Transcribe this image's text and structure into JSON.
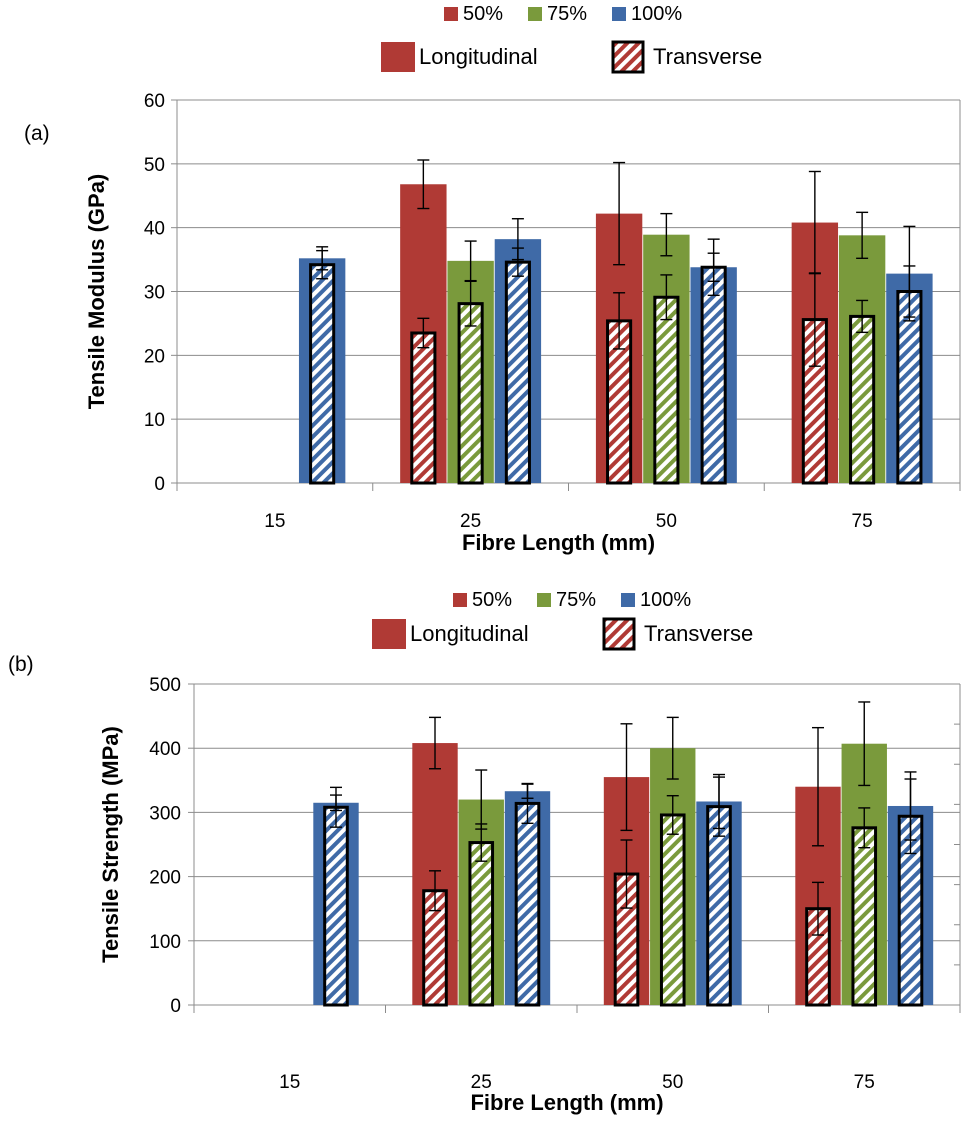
{
  "chart_data": [
    {
      "panel_label": "(a)",
      "type": "bar",
      "xlabel": "Fibre Length (mm)",
      "ylabel": "Tensile Modulus (GPa)",
      "ylim": [
        0,
        60
      ],
      "yticks": [
        0,
        10,
        20,
        30,
        40,
        50,
        60
      ],
      "grid": true,
      "legend": {
        "placement": "top-center",
        "fibre_content": [
          "50%",
          "75%",
          "100%"
        ],
        "directions": [
          "Longitudinal",
          "Transverse"
        ]
      },
      "categories": [
        "15",
        "25",
        "50",
        "75"
      ],
      "series": [
        {
          "name": "50%",
          "direction": "Longitudinal",
          "color": "#B03A35",
          "values": [
            null,
            46.8,
            42.2,
            40.8
          ],
          "error": [
            null,
            3.8,
            8.0,
            8.0
          ]
        },
        {
          "name": "75%",
          "direction": "Longitudinal",
          "color": "#7A9A3C",
          "values": [
            null,
            34.8,
            38.9,
            38.8
          ],
          "error": [
            null,
            3.1,
            3.3,
            3.6
          ]
        },
        {
          "name": "100%",
          "direction": "Longitudinal",
          "color": "#3F6AA7",
          "values": [
            35.2,
            38.2,
            33.8,
            32.8
          ],
          "error": [
            1.8,
            3.2,
            4.4,
            7.4
          ]
        },
        {
          "name": "50%",
          "direction": "Transverse",
          "color": "#B03A35",
          "values": [
            null,
            23.5,
            25.4,
            25.6
          ],
          "error": [
            null,
            2.3,
            4.4,
            7.3
          ]
        },
        {
          "name": "75%",
          "direction": "Transverse",
          "color": "#7A9A3C",
          "values": [
            null,
            28.1,
            29.1,
            26.1
          ],
          "error": [
            null,
            3.5,
            3.5,
            2.5
          ]
        },
        {
          "name": "100%",
          "direction": "Transverse",
          "color": "#3F6AA7",
          "values": [
            34.2,
            34.6,
            33.8,
            30.0
          ],
          "error": [
            2.2,
            2.2,
            2.2,
            4.0
          ]
        }
      ]
    },
    {
      "panel_label": "(b)",
      "type": "bar",
      "xlabel": "Fibre Length (mm)",
      "ylabel": "Tensile Strength (MPa)",
      "ylim": [
        0,
        500
      ],
      "yticks": [
        0,
        100,
        200,
        300,
        400,
        500
      ],
      "grid": true,
      "legend": {
        "placement": "top-center",
        "fibre_content": [
          "50%",
          "75%",
          "100%"
        ],
        "directions": [
          "Longitudinal",
          "Transverse"
        ]
      },
      "categories": [
        "15",
        "25",
        "50",
        "75"
      ],
      "series": [
        {
          "name": "50%",
          "direction": "Longitudinal",
          "color": "#B03A35",
          "values": [
            null,
            408,
            355,
            340
          ],
          "error": [
            null,
            40,
            83,
            92
          ]
        },
        {
          "name": "75%",
          "direction": "Longitudinal",
          "color": "#7A9A3C",
          "values": [
            null,
            320,
            400,
            407
          ],
          "error": [
            null,
            46,
            48,
            65
          ]
        },
        {
          "name": "100%",
          "direction": "Longitudinal",
          "color": "#3F6AA7",
          "values": [
            315,
            333,
            317,
            310
          ],
          "error": [
            12,
            11,
            42,
            53
          ]
        },
        {
          "name": "50%",
          "direction": "Transverse",
          "color": "#B03A35",
          "values": [
            null,
            178,
            204,
            150
          ],
          "error": [
            null,
            31,
            53,
            41
          ]
        },
        {
          "name": "75%",
          "direction": "Transverse",
          "color": "#7A9A3C",
          "values": [
            null,
            253,
            296,
            276
          ],
          "error": [
            null,
            29,
            30,
            31
          ]
        },
        {
          "name": "100%",
          "direction": "Transverse",
          "color": "#3F6AA7",
          "values": [
            308,
            314,
            309,
            294
          ],
          "error": [
            31,
            31,
            46,
            58
          ]
        }
      ]
    }
  ]
}
